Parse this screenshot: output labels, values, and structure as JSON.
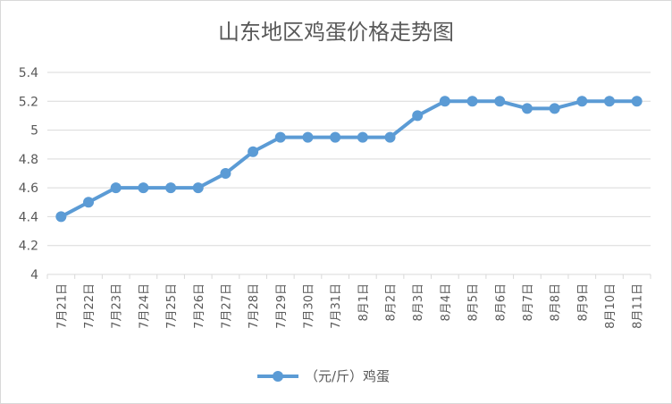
{
  "chart_data": {
    "type": "line",
    "title": "山东地区鸡蛋价格走势图",
    "xlabel": "",
    "ylabel": "",
    "categories": [
      "7月21日",
      "7月22日",
      "7月23日",
      "7月24日",
      "7月25日",
      "7月26日",
      "7月27日",
      "7月28日",
      "7月29日",
      "7月30日",
      "7月31日",
      "8月1日",
      "8月2日",
      "8月3日",
      "8月4日",
      "8月5日",
      "8月6日",
      "8月7日",
      "8月8日",
      "8月9日",
      "8月10日",
      "8月11日"
    ],
    "series": [
      {
        "name": "（元/斤）鸡蛋",
        "values": [
          4.4,
          4.5,
          4.6,
          4.6,
          4.6,
          4.6,
          4.7,
          4.85,
          4.95,
          4.95,
          4.95,
          4.95,
          4.95,
          5.1,
          5.2,
          5.2,
          5.2,
          5.15,
          5.15,
          5.2,
          5.2,
          5.2
        ],
        "color": "#5b9bd5"
      }
    ],
    "ylim": [
      4,
      5.4
    ],
    "yticks": [
      "4",
      "4.2",
      "4.4",
      "4.6",
      "4.8",
      "5",
      "5.2",
      "5.4"
    ],
    "grid": "horizontal",
    "legend_position": "bottom",
    "colors": {
      "grid": "#d9d9d9",
      "text": "#595959",
      "border": "#d9d9d9"
    }
  }
}
